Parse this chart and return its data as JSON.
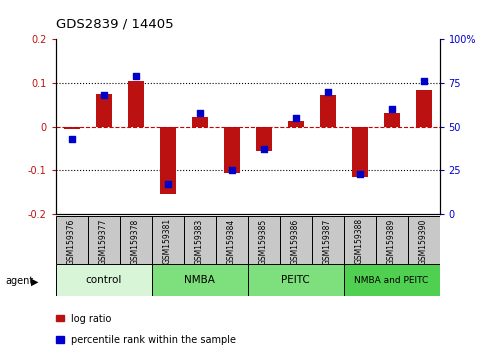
{
  "title": "GDS2839 / 14405",
  "samples": [
    "GSM159376",
    "GSM159377",
    "GSM159378",
    "GSM159381",
    "GSM159383",
    "GSM159384",
    "GSM159385",
    "GSM159386",
    "GSM159387",
    "GSM159388",
    "GSM159389",
    "GSM159390"
  ],
  "log_ratio": [
    -0.005,
    0.075,
    0.103,
    -0.155,
    0.022,
    -0.105,
    -0.055,
    0.012,
    0.073,
    -0.115,
    0.03,
    0.083
  ],
  "percentile": [
    43,
    68,
    79,
    17,
    58,
    25,
    37,
    55,
    70,
    23,
    60,
    76
  ],
  "groups": [
    {
      "label": "control",
      "start": 0,
      "end": 3,
      "color": "#d8f5d8"
    },
    {
      "label": "NMBA",
      "start": 3,
      "end": 6,
      "color": "#7de07d"
    },
    {
      "label": "PEITC",
      "start": 6,
      "end": 9,
      "color": "#7de07d"
    },
    {
      "label": "NMBA and PEITC",
      "start": 9,
      "end": 12,
      "color": "#50d050"
    }
  ],
  "ylim_left": [
    -0.2,
    0.2
  ],
  "ylim_right": [
    0,
    100
  ],
  "yticks_left": [
    -0.2,
    -0.1,
    0.0,
    0.1,
    0.2
  ],
  "yticks_right": [
    0,
    25,
    50,
    75,
    100
  ],
  "ytick_labels_right": [
    "0",
    "25",
    "50",
    "75",
    "100%"
  ],
  "bar_color": "#bb1111",
  "dot_color": "#0000cc",
  "hline_color": "#cc0000",
  "agent_label": "agent",
  "legend_log": "log ratio",
  "legend_pct": "percentile rank within the sample",
  "sample_box_color": "#c8c8c8",
  "bar_width": 0.5
}
